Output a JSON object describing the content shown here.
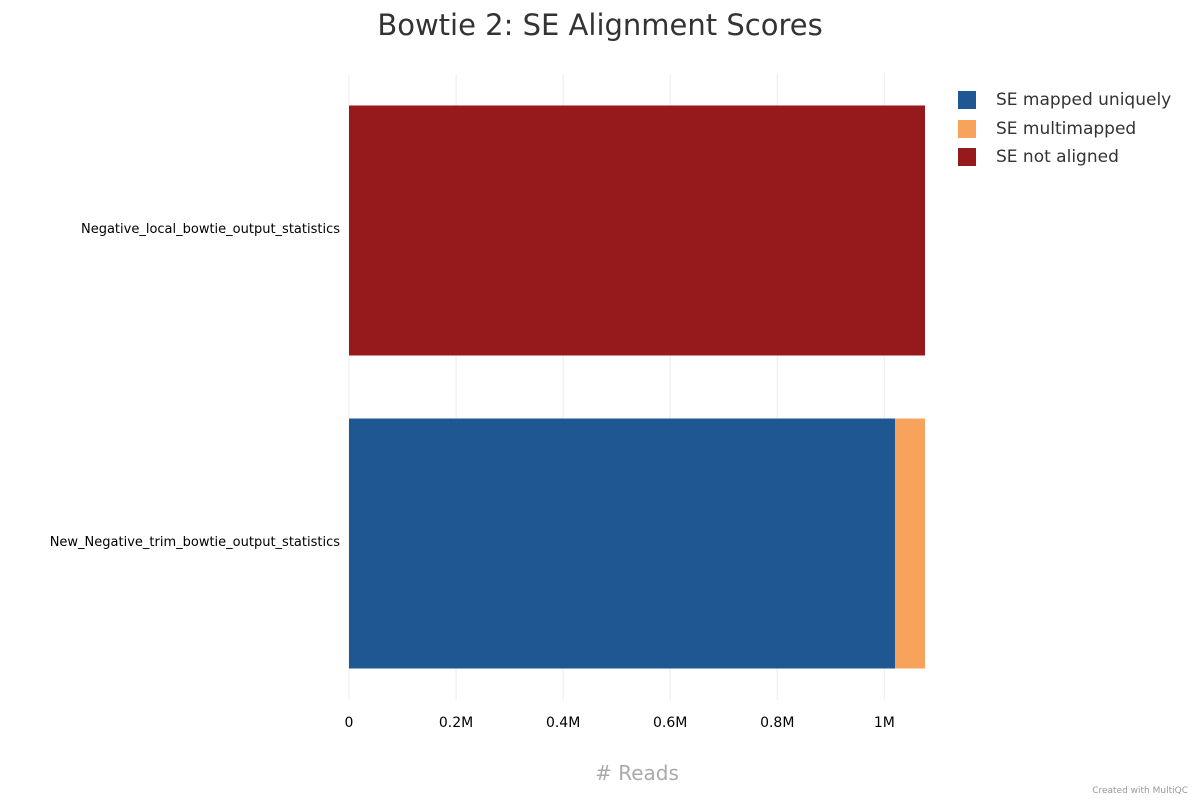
{
  "chart_data": {
    "type": "bar",
    "orientation": "horizontal",
    "stacked": true,
    "title": "Bowtie 2: SE Alignment Scores",
    "xlabel": "# Reads",
    "ylabel": "",
    "categories": [
      "Negative_local_bowtie_output_statistics",
      "New_Negative_trim_bowtie_output_statistics"
    ],
    "series": [
      {
        "name": "SE mapped uniquely",
        "color": "#1f5792",
        "values": [
          0,
          1020000
        ]
      },
      {
        "name": "SE multimapped",
        "color": "#f7a35c",
        "values": [
          0,
          56000
        ]
      },
      {
        "name": "SE not aligned",
        "color": "#961a1b",
        "values": [
          1076000,
          0
        ]
      }
    ],
    "xlim": [
      0,
      1076000
    ],
    "xticks": [
      0,
      200000,
      400000,
      600000,
      800000,
      1000000
    ],
    "xtick_labels": [
      "0",
      "0.2M",
      "0.4M",
      "0.6M",
      "0.8M",
      "1M"
    ],
    "grid": true,
    "legend_position": "top-right"
  },
  "watermark": "Created with MultiQC"
}
